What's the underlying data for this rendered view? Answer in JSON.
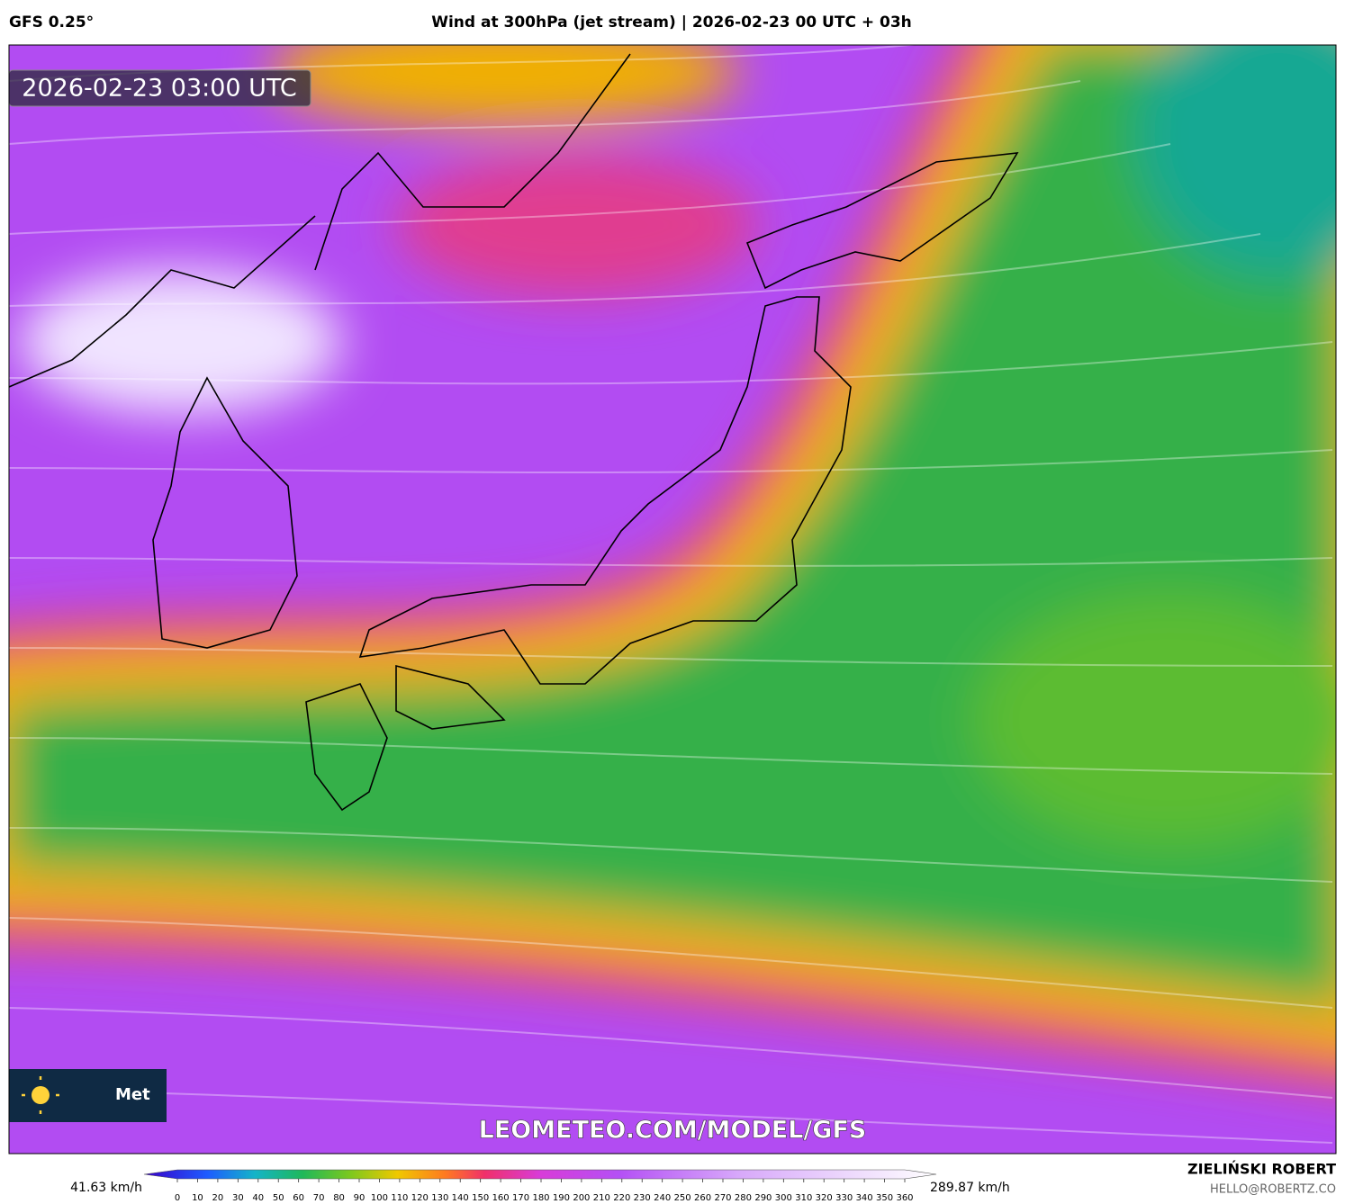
{
  "header": {
    "model": "GFS 0.25°",
    "title": "Wind at 300hPa (jet stream) | 2026-02-23 00 UTC + 03h"
  },
  "map": {
    "timestamp": "2026-02-23 03:00 UTC",
    "logo_text": "Met",
    "watermark": "LEOMETEO.COM/MODEL/GFS"
  },
  "colorbar": {
    "min_label": "41.63 km/h",
    "max_label": "289.87 km/h",
    "ticks": [
      0,
      10,
      20,
      30,
      40,
      50,
      60,
      70,
      80,
      90,
      100,
      110,
      120,
      130,
      140,
      150,
      160,
      170,
      180,
      190,
      200,
      210,
      220,
      230,
      240,
      250,
      260,
      270,
      280,
      290,
      300,
      310,
      320,
      330,
      340,
      350,
      360
    ]
  },
  "footer": {
    "author": "ZIELIŃSKI ROBERT",
    "email": "HELLO@ROBERTZ.CO"
  }
}
